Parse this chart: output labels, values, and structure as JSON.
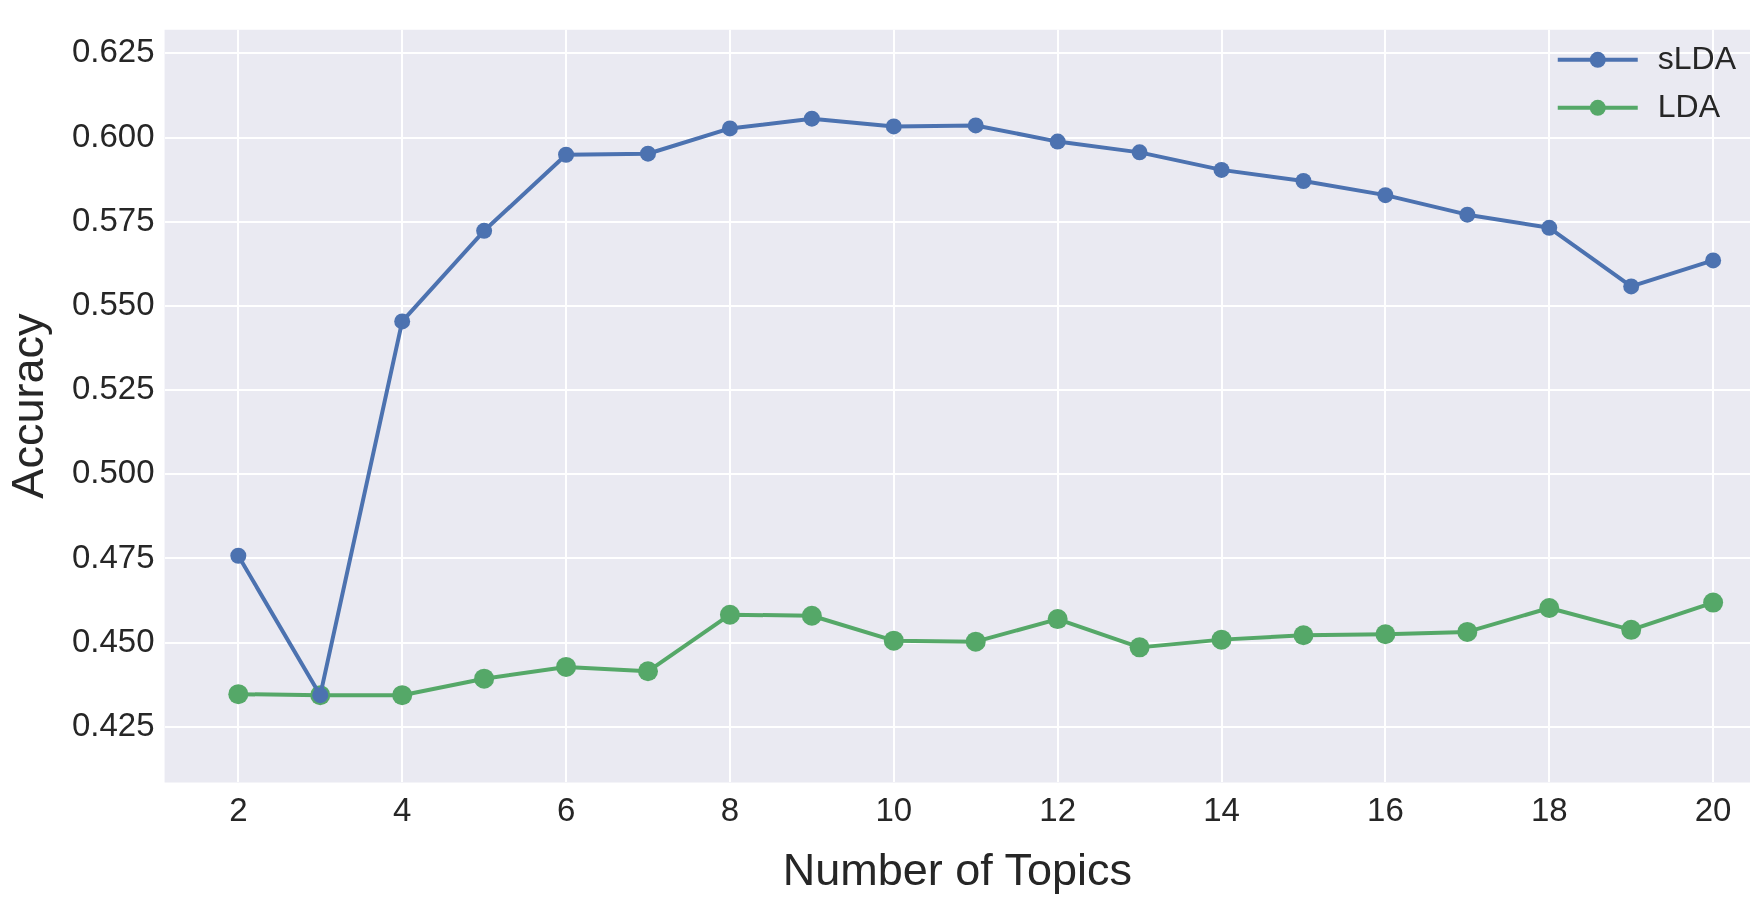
{
  "chart_data": {
    "type": "line",
    "xlabel": "Number of Topics",
    "ylabel": "Accuracy",
    "x": [
      2,
      3,
      4,
      5,
      6,
      7,
      8,
      9,
      10,
      11,
      12,
      13,
      14,
      15,
      16,
      17,
      18,
      19,
      20
    ],
    "series": [
      {
        "name": "sLDA",
        "color": "#4c72b0",
        "values": [
          0.4758,
          0.4344,
          0.5454,
          0.5723,
          0.5949,
          0.5952,
          0.6027,
          0.6056,
          0.6033,
          0.6036,
          0.5988,
          0.5956,
          0.5904,
          0.5871,
          0.5829,
          0.5771,
          0.5732,
          0.5558,
          0.5635
        ]
      },
      {
        "name": "LDA",
        "color": "#55a868",
        "values": [
          0.4347,
          0.4344,
          0.4344,
          0.4393,
          0.4428,
          0.4415,
          0.4583,
          0.458,
          0.4506,
          0.4503,
          0.457,
          0.4486,
          0.4509,
          0.4522,
          0.4525,
          0.4532,
          0.4603,
          0.4538,
          0.4619
        ]
      }
    ],
    "xlim": [
      1.1,
      20.45
    ],
    "ylim": [
      0.4085,
      0.632
    ],
    "xticks": [
      2,
      4,
      6,
      8,
      10,
      12,
      14,
      16,
      18,
      20
    ],
    "yticks": [
      {
        "value": 0.425,
        "label": "0.425"
      },
      {
        "value": 0.45,
        "label": "0.450"
      },
      {
        "value": 0.475,
        "label": "0.475"
      },
      {
        "value": 0.5,
        "label": "0.500"
      },
      {
        "value": 0.525,
        "label": "0.525"
      },
      {
        "value": 0.55,
        "label": "0.550"
      },
      {
        "value": 0.575,
        "label": "0.575"
      },
      {
        "value": 0.6,
        "label": "0.600"
      },
      {
        "value": 0.625,
        "label": "0.625"
      }
    ],
    "grid": true,
    "legend": "top right",
    "marker": "circle",
    "line_style": "solid"
  }
}
